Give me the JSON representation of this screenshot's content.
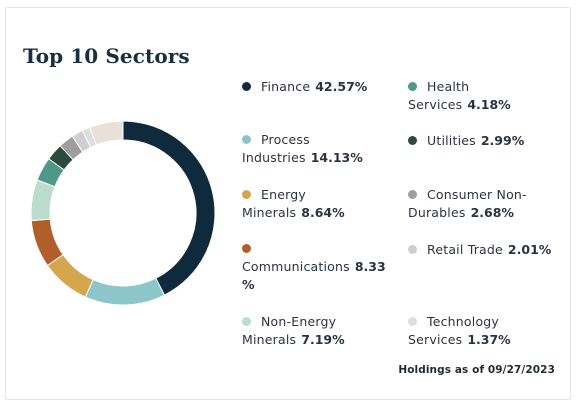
{
  "title": "Top 10 Sectors",
  "footnote": "Holdings as of 09/27/2023",
  "chart_data": {
    "type": "pie",
    "title": "Top 10 Sectors",
    "donut": true,
    "legend_placement": "right",
    "slices": [
      {
        "label": "Finance",
        "value": 42.57,
        "display": "42.57%",
        "color": "#0e2a3c"
      },
      {
        "label": "Process Industries",
        "value": 14.13,
        "display": "14.13%",
        "color": "#8cc6cb"
      },
      {
        "label": "Energy Minerals",
        "value": 8.64,
        "display": "8.64%",
        "color": "#d4a74f"
      },
      {
        "label": "Communications",
        "value": 8.33,
        "display": "8.33 %",
        "color": "#b05f2a"
      },
      {
        "label": "Non-Energy Minerals",
        "value": 7.19,
        "display": "7.19%",
        "color": "#bcdcd0"
      },
      {
        "label": "Health Services",
        "value": 4.18,
        "display": "4.18%",
        "color": "#4f9787"
      },
      {
        "label": "Utilities",
        "value": 2.99,
        "display": "2.99%",
        "color": "#2d4a3f"
      },
      {
        "label": "Consumer Non-Durables",
        "value": 2.68,
        "display": "2.68%",
        "color": "#9e9e9e"
      },
      {
        "label": "Retail Trade",
        "value": 2.01,
        "display": "2.01%",
        "color": "#cfcfcf"
      },
      {
        "label": "Technology Services",
        "value": 1.37,
        "display": "1.37%",
        "color": "#dedede"
      }
    ],
    "remainder_color": "#e9e1d8"
  }
}
